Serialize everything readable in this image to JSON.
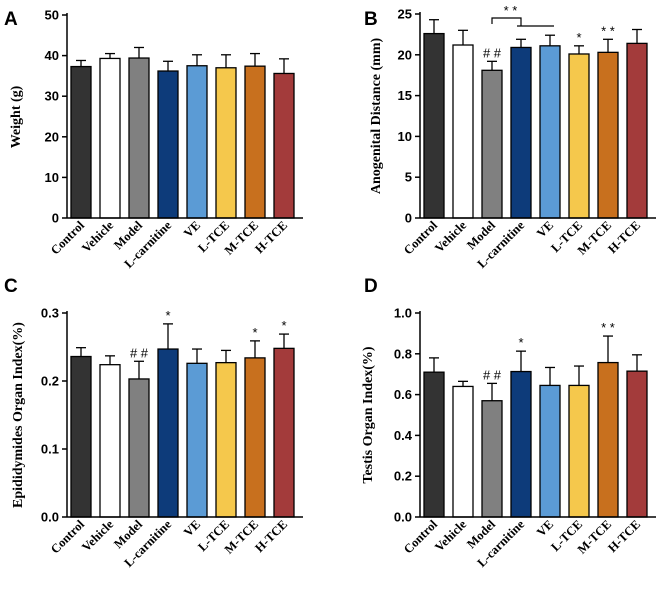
{
  "colors": {
    "Control": "#333333",
    "Vehicle": "#ffffff",
    "Model": "#808080",
    "L-carnitine": "#0d3b7a",
    "VE": "#5b9bd5",
    "L-TCE": "#f5c84c",
    "M-TCE": "#c8701e",
    "H-TCE": "#a33b3b"
  },
  "chart_data": [
    {
      "panel": "A",
      "type": "bar",
      "ylabel": "Weight (g)",
      "ylim": [
        0,
        50
      ],
      "yticks": [
        0,
        10,
        20,
        30,
        40,
        50
      ],
      "categories": [
        "Control",
        "Vehicle",
        "Model",
        "L-carnitine",
        "VE",
        "L-TCE",
        "M-TCE",
        "H-TCE"
      ],
      "values": [
        37.3,
        39.3,
        39.4,
        36.2,
        37.5,
        37.0,
        37.4,
        35.6
      ],
      "errors": [
        1.5,
        1.2,
        2.6,
        2.4,
        2.7,
        3.2,
        3.1,
        3.6
      ],
      "annotations": [
        "",
        "",
        "",
        "",
        "",
        "",
        "",
        ""
      ]
    },
    {
      "panel": "B",
      "type": "bar",
      "ylabel": "Anogenital Distance (mm)",
      "ylim": [
        0,
        25
      ],
      "yticks": [
        0,
        5,
        10,
        15,
        20,
        25
      ],
      "categories": [
        "Control",
        "Vehicle",
        "Model",
        "L-carnitine",
        "VE",
        "L-TCE",
        "M-TCE",
        "H-TCE"
      ],
      "values": [
        22.6,
        21.2,
        18.1,
        20.9,
        21.1,
        20.1,
        20.3,
        21.4
      ],
      "errors": [
        1.7,
        1.8,
        1.1,
        1.0,
        1.3,
        1.0,
        1.6,
        1.7
      ],
      "annotations": [
        "",
        "",
        "##",
        "",
        "",
        "*",
        "**",
        ""
      ],
      "bracket": {
        "from": 2,
        "to": [
          3,
          4
        ],
        "label": "**"
      }
    },
    {
      "panel": "C",
      "type": "bar",
      "ylabel": "Epididymides Organ Index(%)",
      "ylim": [
        0,
        0.3
      ],
      "yticks": [
        0.0,
        0.1,
        0.2,
        0.3
      ],
      "categories": [
        "Control",
        "Vehicle",
        "Model",
        "L-carnitine",
        "VE",
        "L-TCE",
        "M-TCE",
        "H-TCE"
      ],
      "values": [
        0.236,
        0.224,
        0.203,
        0.247,
        0.226,
        0.227,
        0.234,
        0.248
      ],
      "errors": [
        0.013,
        0.013,
        0.026,
        0.037,
        0.021,
        0.018,
        0.025,
        0.021
      ],
      "annotations": [
        "",
        "",
        "##",
        "*",
        "",
        "",
        "*",
        "*"
      ]
    },
    {
      "panel": "D",
      "type": "bar",
      "ylabel": "Testis Organ Index(%)",
      "ylim": [
        0,
        1.0
      ],
      "yticks": [
        0.0,
        0.2,
        0.4,
        0.6,
        0.8,
        1.0
      ],
      "categories": [
        "Control",
        "Vehicle",
        "Model",
        "L-carnitine",
        "VE",
        "L-TCE",
        "M-TCE",
        "H-TCE"
      ],
      "values": [
        0.71,
        0.64,
        0.57,
        0.713,
        0.645,
        0.645,
        0.757,
        0.715
      ],
      "errors": [
        0.07,
        0.025,
        0.085,
        0.1,
        0.088,
        0.095,
        0.13,
        0.08
      ],
      "annotations": [
        "",
        "",
        "##",
        "*",
        "",
        "",
        "**",
        ""
      ]
    }
  ]
}
